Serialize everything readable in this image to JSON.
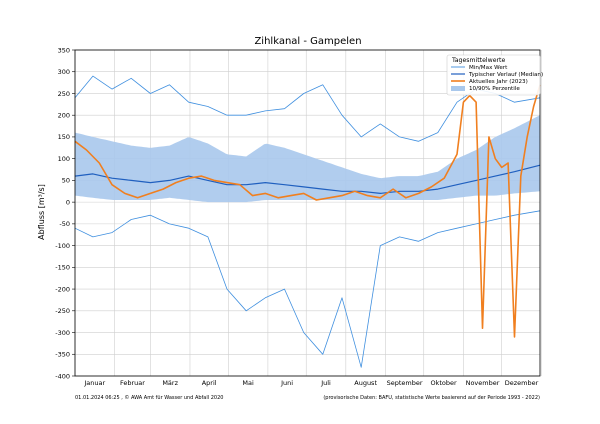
{
  "chart_data": {
    "type": "line",
    "title": "Zihlkanal - Gampelen",
    "xlabel": "",
    "ylabel": "Abfluss [m³/s]",
    "ylim": [
      -400,
      350
    ],
    "yticks": [
      -400,
      -350,
      -300,
      -250,
      -200,
      -150,
      -100,
      -50,
      0,
      50,
      100,
      150,
      200,
      250,
      300,
      350
    ],
    "months": [
      "Januar",
      "Februar",
      "März",
      "April",
      "Mai",
      "Juni",
      "Juli",
      "August",
      "September",
      "Oktober",
      "November",
      "Dezember"
    ],
    "grid": true,
    "legend": {
      "title": "Tagesmittelwerte",
      "position": "top-right",
      "entries": [
        "Min/Max Wert",
        "Typischer Verlauf (Median)",
        "Aktuelles Jahr (2023)",
        "10/90% Perzentile"
      ]
    },
    "colors": {
      "minmax": "#3f8fdf",
      "median": "#1f5fbf",
      "current": "#f07f1f",
      "band": "#a9c8ec"
    },
    "series": [
      {
        "name": "Max Wert",
        "x_day": [
          1,
          15,
          30,
          45,
          60,
          75,
          90,
          105,
          120,
          135,
          150,
          165,
          180,
          195,
          210,
          225,
          240,
          255,
          270,
          285,
          300,
          315,
          330,
          345,
          365
        ],
        "values": [
          240,
          290,
          260,
          285,
          250,
          270,
          230,
          220,
          200,
          200,
          210,
          215,
          250,
          270,
          200,
          150,
          180,
          150,
          140,
          160,
          230,
          260,
          250,
          230,
          240
        ]
      },
      {
        "name": "90% Perzentil",
        "x_day": [
          1,
          15,
          30,
          45,
          60,
          75,
          90,
          105,
          120,
          135,
          150,
          165,
          180,
          195,
          210,
          225,
          240,
          255,
          270,
          285,
          300,
          315,
          330,
          345,
          365
        ],
        "values": [
          160,
          150,
          140,
          130,
          125,
          130,
          150,
          135,
          110,
          105,
          135,
          125,
          110,
          95,
          80,
          65,
          55,
          60,
          60,
          70,
          100,
          120,
          150,
          170,
          200
        ]
      },
      {
        "name": "Typischer Verlauf (Median)",
        "x_day": [
          1,
          15,
          30,
          45,
          60,
          75,
          90,
          105,
          120,
          135,
          150,
          165,
          180,
          195,
          210,
          225,
          240,
          255,
          270,
          285,
          300,
          315,
          330,
          345,
          365
        ],
        "values": [
          60,
          65,
          55,
          50,
          45,
          50,
          60,
          50,
          40,
          40,
          45,
          40,
          35,
          30,
          25,
          25,
          20,
          25,
          25,
          30,
          40,
          50,
          60,
          70,
          85
        ]
      },
      {
        "name": "10% Perzentil",
        "x_day": [
          1,
          15,
          30,
          45,
          60,
          75,
          90,
          105,
          120,
          135,
          150,
          165,
          180,
          195,
          210,
          225,
          240,
          255,
          270,
          285,
          300,
          315,
          330,
          345,
          365
        ],
        "values": [
          15,
          10,
          5,
          5,
          5,
          10,
          5,
          0,
          0,
          0,
          5,
          5,
          5,
          5,
          5,
          5,
          5,
          5,
          5,
          5,
          10,
          15,
          15,
          20,
          25
        ]
      },
      {
        "name": "Min Wert",
        "x_day": [
          1,
          15,
          30,
          45,
          60,
          75,
          90,
          105,
          120,
          135,
          150,
          165,
          180,
          195,
          210,
          225,
          240,
          255,
          270,
          285,
          300,
          315,
          330,
          345,
          365
        ],
        "values": [
          -60,
          -80,
          -70,
          -40,
          -30,
          -50,
          -60,
          -80,
          -200,
          -250,
          -220,
          -200,
          -300,
          -350,
          -220,
          -380,
          -100,
          -80,
          -90,
          -70,
          -60,
          -50,
          -40,
          -30,
          -20
        ]
      },
      {
        "name": "Aktuelles Jahr (2023)",
        "x_day": [
          1,
          10,
          20,
          30,
          40,
          50,
          60,
          70,
          80,
          90,
          100,
          110,
          120,
          130,
          140,
          150,
          160,
          170,
          180,
          190,
          200,
          210,
          220,
          230,
          240,
          250,
          260,
          270,
          280,
          290,
          300,
          305,
          310,
          315,
          320,
          325,
          330,
          335,
          340,
          345,
          350,
          355,
          360,
          365
        ],
        "values": [
          140,
          120,
          90,
          40,
          20,
          10,
          20,
          30,
          45,
          55,
          60,
          50,
          45,
          40,
          15,
          20,
          10,
          15,
          20,
          5,
          10,
          15,
          25,
          15,
          10,
          30,
          10,
          20,
          35,
          55,
          110,
          230,
          245,
          230,
          -290,
          150,
          100,
          80,
          90,
          -310,
          60,
          150,
          220,
          270
        ]
      }
    ]
  },
  "footer_left": "01.01.2024 06:25 , © AWA Amt für Wasser und Abfall 2020",
  "footer_right": "(provisorische Daten: BAFU, statistische Werte basierend auf der Periode 1993 - 2022)"
}
